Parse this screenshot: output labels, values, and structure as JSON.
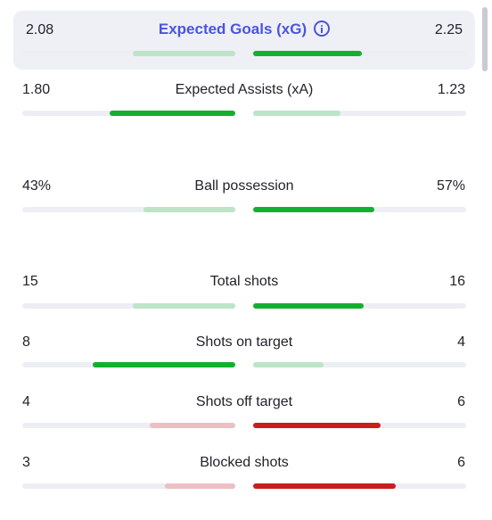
{
  "colors": {
    "win_strong": "#13b02f",
    "win_light": "#bde4c6",
    "lose_strong": "#c81e1e",
    "lose_light": "#ecbfc3",
    "accent": "#4a54e0"
  },
  "stats": [
    {
      "label": "Expected Goals (xG)",
      "home": "2.08",
      "away": "2.25",
      "home_fill": 0.48,
      "away_fill": 0.51,
      "home_color": "win_light",
      "away_color": "win_strong",
      "icon": "info-icon",
      "highlight": true
    },
    {
      "label": "Expected Assists (xA)",
      "home": "1.80",
      "away": "1.23",
      "home_fill": 0.59,
      "away_fill": 0.41,
      "home_color": "win_strong",
      "away_color": "win_light"
    },
    {
      "label": "Ball possession",
      "home": "43%",
      "away": "57%",
      "home_fill": 0.43,
      "away_fill": 0.57,
      "home_color": "win_light",
      "away_color": "win_strong"
    },
    {
      "label": "Total shots",
      "home": "15",
      "away": "16",
      "home_fill": 0.48,
      "away_fill": 0.52,
      "home_color": "win_light",
      "away_color": "win_strong"
    },
    {
      "label": "Shots on target",
      "home": "8",
      "away": "4",
      "home_fill": 0.67,
      "away_fill": 0.33,
      "home_color": "win_strong",
      "away_color": "win_light"
    },
    {
      "label": "Shots off target",
      "home": "4",
      "away": "6",
      "home_fill": 0.4,
      "away_fill": 0.6,
      "home_color": "lose_light",
      "away_color": "lose_strong"
    },
    {
      "label": "Blocked shots",
      "home": "3",
      "away": "6",
      "home_fill": 0.33,
      "away_fill": 0.67,
      "home_color": "lose_light",
      "away_color": "lose_strong"
    }
  ]
}
